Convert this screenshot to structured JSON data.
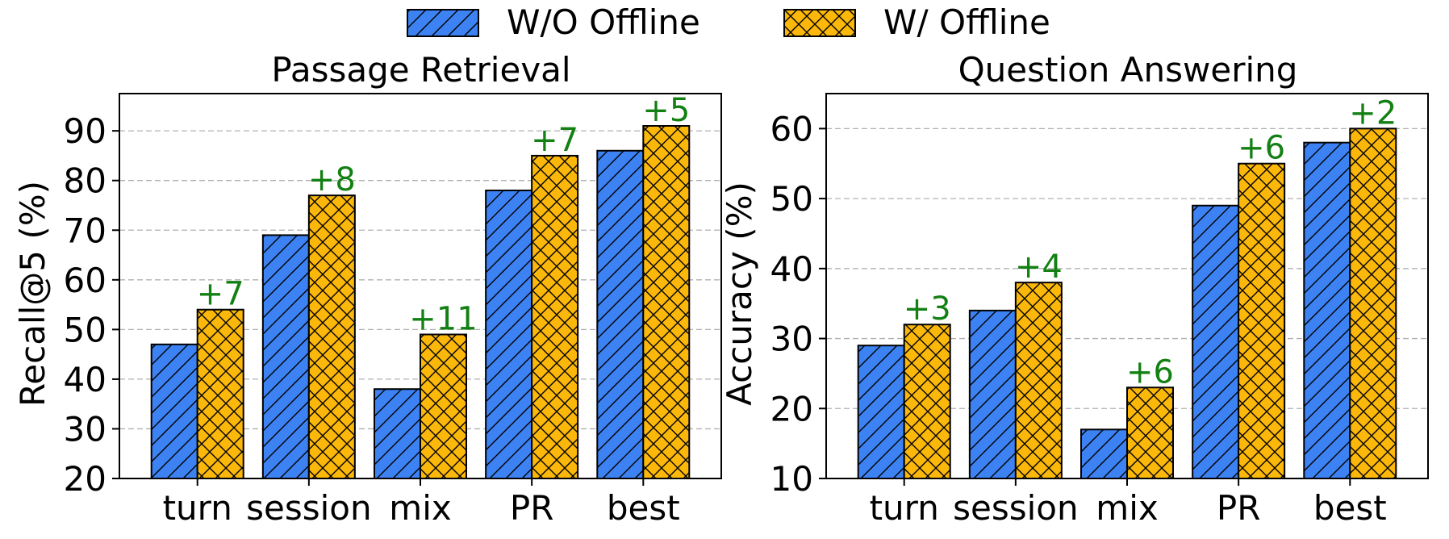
{
  "legend": [
    {
      "label": "W/O Offline",
      "color": "#3D82F2",
      "hatch": "diagonal"
    },
    {
      "label": "W/ Offline",
      "color": "#FBB80B",
      "hatch": "crosshatch"
    }
  ],
  "colors": {
    "delta": "#138013",
    "grid": "#b0b0b0"
  },
  "chart_data": [
    {
      "type": "bar",
      "title": "Passage Retrieval",
      "ylabel": "Recall@5 (%)",
      "xlabel": "",
      "categories": [
        "turn",
        "session",
        "mix",
        "PR",
        "best"
      ],
      "series": [
        {
          "name": "W/O Offline",
          "values": [
            47,
            69,
            38,
            78,
            86
          ]
        },
        {
          "name": "W/ Offline",
          "values": [
            54,
            77,
            49,
            85,
            91
          ]
        }
      ],
      "annotations": [
        "+7",
        "+8",
        "+11",
        "+7",
        "+5"
      ],
      "ylim": [
        20,
        97.5
      ],
      "yticks": [
        20,
        30,
        40,
        50,
        60,
        70,
        80,
        90
      ],
      "grid": "y-dashed"
    },
    {
      "type": "bar",
      "title": "Question Answering",
      "ylabel": "Accuracy (%)",
      "xlabel": "",
      "categories": [
        "turn",
        "session",
        "mix",
        "PR",
        "best"
      ],
      "series": [
        {
          "name": "W/O Offline",
          "values": [
            29,
            34,
            17,
            49,
            58
          ]
        },
        {
          "name": "W/ Offline",
          "values": [
            32,
            38,
            23,
            55,
            60
          ]
        }
      ],
      "annotations": [
        "+3",
        "+4",
        "+6",
        "+6",
        "+2"
      ],
      "ylim": [
        10,
        65
      ],
      "yticks": [
        10,
        20,
        30,
        40,
        50,
        60
      ],
      "grid": "y-dashed"
    }
  ]
}
